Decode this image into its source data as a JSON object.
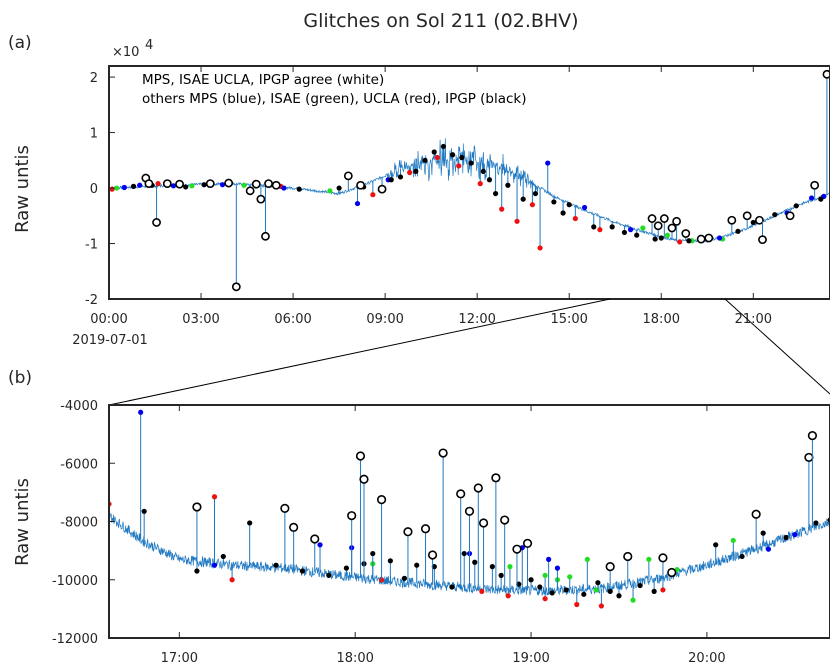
{
  "title": "Glitches on Sol 211 (02.BHV)",
  "colors": {
    "signal": "#1f78c1",
    "agree": "#ffffff",
    "mps": "#0000ee",
    "isae": "#22dd22",
    "ucla": "#ee1111",
    "ipgp": "#000000"
  },
  "panel_a": {
    "label": "(a)",
    "multiplier": "×10",
    "multiplier_exp": "4",
    "ylabel": "Raw untis",
    "xstart_label": "2019-07-01",
    "legend_line1": "MPS, ISAE UCLA, IPGP agree (white)",
    "legend_line2": "others MPS (blue), ISAE (green), UCLA (red), IPGP (black)"
  },
  "panel_b": {
    "label": "(b)",
    "ylabel": "Raw untis"
  },
  "chart_data": [
    {
      "type": "line",
      "panel": "a",
      "xlabel": "",
      "ylabel": "Raw untis",
      "x_unit": "hours",
      "xlim": [
        0,
        23.5
      ],
      "ylim": [
        -2,
        2.2
      ],
      "y_multiplier": "×10^4",
      "x_ticks": [
        0,
        3,
        6,
        9,
        12,
        15,
        18,
        21
      ],
      "x_tick_labels": [
        "00:00",
        "03:00",
        "06:00",
        "09:00",
        "12:00",
        "15:00",
        "18:00",
        "21:00"
      ],
      "y_ticks": [
        -2,
        -1,
        0,
        1,
        2
      ],
      "y_tick_labels": [
        "-2",
        "-1",
        "0",
        "1",
        "2"
      ],
      "baseline": {
        "x": [
          0,
          2,
          4,
          6,
          7.5,
          8.5,
          9.5,
          10.5,
          11.5,
          12.5,
          13.5,
          14.5,
          15.5,
          16.5,
          17.5,
          18.5,
          19.5,
          20.5,
          21.5,
          22.5,
          23.5
        ],
        "y": [
          0.0,
          0.05,
          0.08,
          0.0,
          -0.1,
          0.1,
          0.35,
          0.5,
          0.5,
          0.42,
          0.2,
          -0.15,
          -0.4,
          -0.62,
          -0.8,
          -0.95,
          -0.95,
          -0.8,
          -0.55,
          -0.3,
          -0.1
        ]
      },
      "band": {
        "x": [
          9,
          10,
          11,
          12,
          13,
          14
        ],
        "amplitude": [
          0.15,
          0.35,
          0.45,
          0.4,
          0.3,
          0.15
        ]
      },
      "glitches": {
        "agree": [
          [
            1.2,
            0.18
          ],
          [
            1.3,
            0.08
          ],
          [
            1.55,
            -0.62
          ],
          [
            1.9,
            0.08
          ],
          [
            2.3,
            0.07
          ],
          [
            3.3,
            0.08
          ],
          [
            3.9,
            0.09
          ],
          [
            4.15,
            -1.78
          ],
          [
            4.6,
            -0.05
          ],
          [
            4.8,
            0.07
          ],
          [
            4.95,
            -0.2
          ],
          [
            5.1,
            -0.87
          ],
          [
            5.2,
            0.08
          ],
          [
            5.45,
            0.05
          ],
          [
            7.8,
            0.22
          ],
          [
            8.2,
            0.05
          ],
          [
            8.9,
            -0.02
          ],
          [
            17.7,
            -0.55
          ],
          [
            17.9,
            -0.68
          ],
          [
            18.1,
            -0.55
          ],
          [
            18.35,
            -0.72
          ],
          [
            18.5,
            -0.6
          ],
          [
            18.8,
            -0.82
          ],
          [
            19.3,
            -0.92
          ],
          [
            19.55,
            -0.9
          ],
          [
            20.3,
            -0.58
          ],
          [
            20.8,
            -0.5
          ],
          [
            21.2,
            -0.58
          ],
          [
            21.3,
            -0.93
          ],
          [
            22.2,
            -0.5
          ],
          [
            23.0,
            0.05
          ],
          [
            23.4,
            2.05
          ]
        ],
        "mps": [
          [
            0.5,
            0.01
          ],
          [
            1.0,
            0.05
          ],
          [
            2.1,
            0.04
          ],
          [
            3.7,
            0.06
          ],
          [
            5.7,
            0.0
          ],
          [
            8.1,
            -0.28
          ],
          [
            9.1,
            0.15
          ],
          [
            14.3,
            0.45
          ],
          [
            15.5,
            -0.35
          ],
          [
            17.0,
            -0.75
          ],
          [
            19.9,
            -0.9
          ],
          [
            22.1,
            -0.45
          ],
          [
            22.9,
            -0.18
          ],
          [
            23.3,
            -0.15
          ]
        ],
        "isae": [
          [
            0.25,
            0.0
          ],
          [
            2.7,
            0.04
          ],
          [
            4.4,
            0.05
          ],
          [
            7.2,
            -0.05
          ],
          [
            17.4,
            -0.72
          ],
          [
            18.2,
            -0.85
          ],
          [
            19.0,
            -0.95
          ],
          [
            20.0,
            -0.92
          ]
        ],
        "ucla": [
          [
            0.1,
            -0.02
          ],
          [
            1.6,
            0.08
          ],
          [
            5.6,
            0.03
          ],
          [
            8.6,
            -0.12
          ],
          [
            9.8,
            0.28
          ],
          [
            10.7,
            0.55
          ],
          [
            11.4,
            0.4
          ],
          [
            12.1,
            0.08
          ],
          [
            12.8,
            -0.38
          ],
          [
            13.3,
            -0.6
          ],
          [
            13.8,
            -0.3
          ],
          [
            14.05,
            -1.08
          ],
          [
            15.2,
            -0.55
          ],
          [
            16.0,
            -0.75
          ],
          [
            18.6,
            -0.97
          ]
        ],
        "ipgp": [
          [
            0.8,
            0.03
          ],
          [
            1.4,
            0.05
          ],
          [
            2.5,
            0.02
          ],
          [
            3.1,
            0.06
          ],
          [
            6.2,
            -0.02
          ],
          [
            7.5,
            0.0
          ],
          [
            8.3,
            0.02
          ],
          [
            9.2,
            0.15
          ],
          [
            9.5,
            0.2
          ],
          [
            10.0,
            0.3
          ],
          [
            10.3,
            0.5
          ],
          [
            10.6,
            0.65
          ],
          [
            10.9,
            0.75
          ],
          [
            11.2,
            0.6
          ],
          [
            11.5,
            0.55
          ],
          [
            11.8,
            0.45
          ],
          [
            12.2,
            0.3
          ],
          [
            12.4,
            0.15
          ],
          [
            12.6,
            -0.1
          ],
          [
            13.0,
            0.05
          ],
          [
            13.5,
            -0.2
          ],
          [
            13.9,
            -0.1
          ],
          [
            14.5,
            -0.25
          ],
          [
            14.8,
            -0.45
          ],
          [
            15.0,
            -0.3
          ],
          [
            15.8,
            -0.7
          ],
          [
            16.4,
            -0.7
          ],
          [
            16.8,
            -0.8
          ],
          [
            17.2,
            -0.85
          ],
          [
            17.8,
            -0.92
          ],
          [
            18.0,
            -0.9
          ],
          [
            18.9,
            -0.95
          ],
          [
            19.6,
            -0.9
          ],
          [
            20.5,
            -0.78
          ],
          [
            21.0,
            -0.62
          ],
          [
            21.7,
            -0.48
          ],
          [
            22.4,
            -0.32
          ],
          [
            23.2,
            -0.2
          ]
        ]
      }
    },
    {
      "type": "line",
      "panel": "b",
      "xlabel": "",
      "ylabel": "Raw untis",
      "x_unit": "hours",
      "xlim": [
        16.6,
        20.7
      ],
      "ylim": [
        -12000,
        -4000
      ],
      "x_ticks": [
        17,
        18,
        19,
        20
      ],
      "x_tick_labels": [
        "17:00",
        "18:00",
        "19:00",
        "20:00"
      ],
      "y_ticks": [
        -12000,
        -10000,
        -8000,
        -6000,
        -4000
      ],
      "y_tick_labels": [
        "-12000",
        "-10000",
        "-8000",
        "-6000",
        "-4000"
      ],
      "baseline": {
        "x": [
          16.6,
          16.8,
          17.0,
          17.3,
          17.6,
          17.9,
          18.2,
          18.5,
          18.8,
          19.1,
          19.4,
          19.7,
          20.0,
          20.3,
          20.7
        ],
        "y": [
          -7800,
          -8700,
          -9300,
          -9500,
          -9600,
          -9850,
          -10050,
          -10200,
          -10350,
          -10380,
          -10300,
          -10000,
          -9500,
          -8900,
          -8000
        ]
      },
      "glitches": {
        "agree": [
          [
            17.1,
            -7500
          ],
          [
            17.6,
            -7550
          ],
          [
            17.65,
            -8200
          ],
          [
            17.77,
            -8600
          ],
          [
            17.98,
            -7800
          ],
          [
            18.03,
            -5750
          ],
          [
            18.05,
            -6550
          ],
          [
            18.15,
            -7250
          ],
          [
            18.3,
            -8350
          ],
          [
            18.4,
            -8250
          ],
          [
            18.44,
            -9150
          ],
          [
            18.5,
            -5650
          ],
          [
            18.6,
            -7050
          ],
          [
            18.65,
            -7650
          ],
          [
            18.7,
            -6850
          ],
          [
            18.73,
            -8050
          ],
          [
            18.8,
            -6500
          ],
          [
            18.85,
            -7950
          ],
          [
            18.92,
            -8950
          ],
          [
            18.98,
            -8750
          ],
          [
            19.45,
            -9550
          ],
          [
            19.55,
            -9200
          ],
          [
            19.75,
            -9250
          ],
          [
            19.8,
            -9750
          ],
          [
            20.28,
            -7750
          ],
          [
            20.58,
            -5800
          ],
          [
            20.6,
            -5050
          ]
        ],
        "mps": [
          [
            16.78,
            -4250
          ],
          [
            17.2,
            -9500
          ],
          [
            17.8,
            -8800
          ],
          [
            17.98,
            -8900
          ],
          [
            18.65,
            -9100
          ],
          [
            18.95,
            -8900
          ],
          [
            19.1,
            -9300
          ],
          [
            19.15,
            -9600
          ],
          [
            20.35,
            -8950
          ],
          [
            20.5,
            -8450
          ]
        ],
        "isae": [
          [
            18.1,
            -9450
          ],
          [
            18.88,
            -9550
          ],
          [
            19.08,
            -9850
          ],
          [
            19.15,
            -10000
          ],
          [
            19.22,
            -9900
          ],
          [
            19.32,
            -9300
          ],
          [
            19.37,
            -10350
          ],
          [
            19.58,
            -10700
          ],
          [
            19.67,
            -9300
          ],
          [
            19.83,
            -9650
          ],
          [
            20.15,
            -8650
          ]
        ],
        "ucla": [
          [
            16.6,
            -7400
          ],
          [
            17.2,
            -7150
          ],
          [
            17.3,
            -10000
          ],
          [
            18.15,
            -10000
          ],
          [
            18.72,
            -10400
          ],
          [
            18.87,
            -10550
          ],
          [
            19.08,
            -10650
          ],
          [
            19.26,
            -10850
          ],
          [
            19.4,
            -10900
          ],
          [
            19.75,
            -10350
          ]
        ],
        "ipgp": [
          [
            16.8,
            -7650
          ],
          [
            17.1,
            -9700
          ],
          [
            17.25,
            -9200
          ],
          [
            17.4,
            -8050
          ],
          [
            17.55,
            -9500
          ],
          [
            17.7,
            -9700
          ],
          [
            17.85,
            -9850
          ],
          [
            17.95,
            -9600
          ],
          [
            18.05,
            -9450
          ],
          [
            18.1,
            -9100
          ],
          [
            18.2,
            -9350
          ],
          [
            18.28,
            -9950
          ],
          [
            18.35,
            -9500
          ],
          [
            18.45,
            -9550
          ],
          [
            18.55,
            -10250
          ],
          [
            18.62,
            -9100
          ],
          [
            18.68,
            -9400
          ],
          [
            18.78,
            -9550
          ],
          [
            18.83,
            -9850
          ],
          [
            18.93,
            -10150
          ],
          [
            19.0,
            -10000
          ],
          [
            19.05,
            -10250
          ],
          [
            19.12,
            -10450
          ],
          [
            19.2,
            -10350
          ],
          [
            19.3,
            -10500
          ],
          [
            19.38,
            -10100
          ],
          [
            19.45,
            -10400
          ],
          [
            19.5,
            -10550
          ],
          [
            19.62,
            -10200
          ],
          [
            19.7,
            -10400
          ],
          [
            20.05,
            -8800
          ],
          [
            20.2,
            -9200
          ],
          [
            20.32,
            -8400
          ],
          [
            20.45,
            -8550
          ],
          [
            20.62,
            -8050
          ],
          [
            20.7,
            -7950
          ]
        ]
      }
    }
  ]
}
